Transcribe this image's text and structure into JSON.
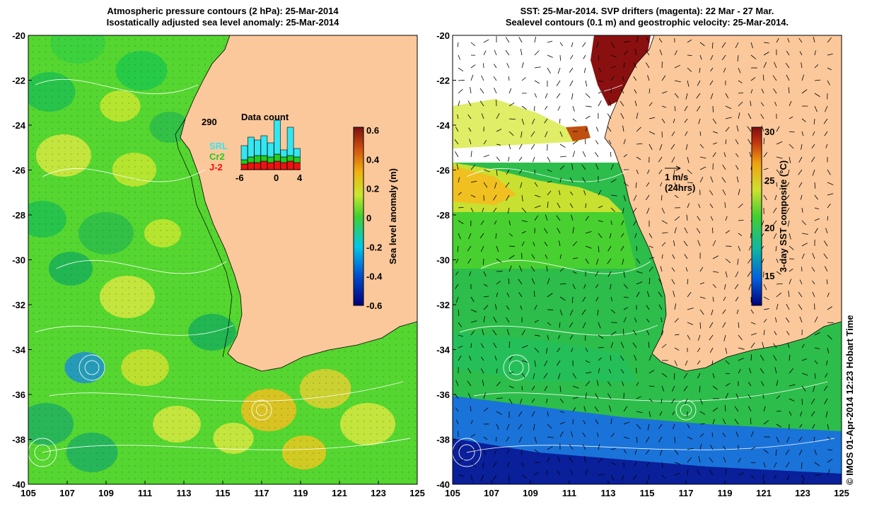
{
  "left_panel": {
    "title_line1": "Atmospheric pressure contours (2 hPa): 25-Mar-2014",
    "title_line2": "Isostatically adjusted sea level anomaly: 25-Mar-2014",
    "colorbar": {
      "label": "Sea level anomaly (m)",
      "ticks": [
        "0.6",
        "0.4",
        "0.2",
        "0",
        "-0.2",
        "-0.4",
        "-0.6"
      ]
    },
    "inset": {
      "title": "Data count",
      "max_label": "290",
      "x_ticks": [
        "-6",
        "0",
        "4"
      ],
      "legend": [
        {
          "label": "SRL",
          "color": "#33e6f0"
        },
        {
          "label": "Cr2",
          "color": "#22cc22"
        },
        {
          "label": "J-2",
          "color": "#ee1111"
        }
      ]
    }
  },
  "right_panel": {
    "title_line1": "SST: 25-Mar-2014. SVP drifters (magenta): 22 Mar - 27 Mar.",
    "title_line2": "Sealevel contours (0.1 m) and geostrophic velocity: 25-Mar-2014.",
    "colorbar": {
      "label": "3-day SST composite (°C)",
      "ticks": [
        "30",
        "25",
        "20",
        "15"
      ]
    },
    "vector_scale": {
      "line1": "1 m/s",
      "line2": "(24hrs)"
    }
  },
  "axes": {
    "lat_labels": [
      "-20",
      "-22",
      "-24",
      "-26",
      "-28",
      "-30",
      "-32",
      "-34",
      "-36",
      "-38",
      "-40"
    ],
    "lon_labels": [
      "105",
      "107",
      "109",
      "111",
      "113",
      "115",
      "117",
      "119",
      "121",
      "123",
      "125"
    ]
  },
  "credit": "© IMOS 01-Apr-2014 12:23 Hobart Time",
  "colors": {
    "land": "#fbc89b",
    "ocean_green": "#55d630",
    "ocean_yellow": "#d8e840",
    "sst_blue": "#1a73d9",
    "sst_deep": "#0a1f9a",
    "sst_green": "#2dbd4a",
    "warm": "#8a1010"
  }
}
